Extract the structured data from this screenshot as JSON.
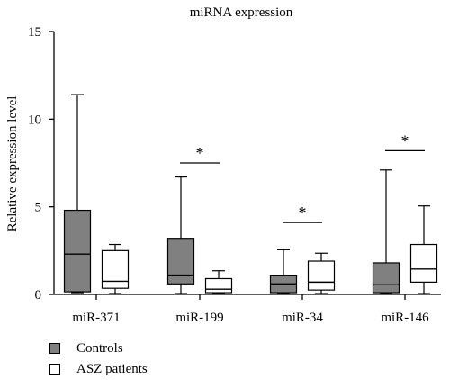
{
  "chart_data": {
    "type": "boxplot",
    "title": "miRNA expression",
    "xlabel": "",
    "ylabel": "Relative expression level",
    "ylim": [
      0,
      15
    ],
    "yticks": [
      0,
      5,
      10,
      15
    ],
    "categories": [
      "miR-371",
      "miR-199",
      "miR-34",
      "miR-146"
    ],
    "series": [
      {
        "name": "Controls",
        "color": "#808080",
        "boxes": [
          {
            "min": 0.1,
            "q1": 0.15,
            "median": 2.3,
            "q3": 4.8,
            "max": 11.4
          },
          {
            "min": 0.05,
            "q1": 0.6,
            "median": 1.1,
            "q3": 3.2,
            "max": 6.7
          },
          {
            "min": 0.05,
            "q1": 0.1,
            "median": 0.6,
            "q3": 1.1,
            "max": 2.55
          },
          {
            "min": 0.05,
            "q1": 0.1,
            "median": 0.55,
            "q3": 1.8,
            "max": 7.1
          }
        ]
      },
      {
        "name": "ASZ patients",
        "color": "#ffffff",
        "boxes": [
          {
            "min": 0.05,
            "q1": 0.35,
            "median": 0.75,
            "q3": 2.5,
            "max": 2.85
          },
          {
            "min": 0.05,
            "q1": 0.1,
            "median": 0.3,
            "q3": 0.9,
            "max": 1.35
          },
          {
            "min": 0.05,
            "q1": 0.25,
            "median": 0.7,
            "q3": 1.9,
            "max": 2.35
          },
          {
            "min": 0.05,
            "q1": 0.7,
            "median": 1.45,
            "q3": 2.85,
            "max": 5.05
          }
        ]
      }
    ],
    "significance": [
      {
        "category": "miR-199",
        "label": "*",
        "y": 7.5
      },
      {
        "category": "miR-34",
        "label": "*",
        "y": 4.1
      },
      {
        "category": "miR-146",
        "label": "*",
        "y": 8.2
      }
    ],
    "legend_position": "bottom-left"
  }
}
